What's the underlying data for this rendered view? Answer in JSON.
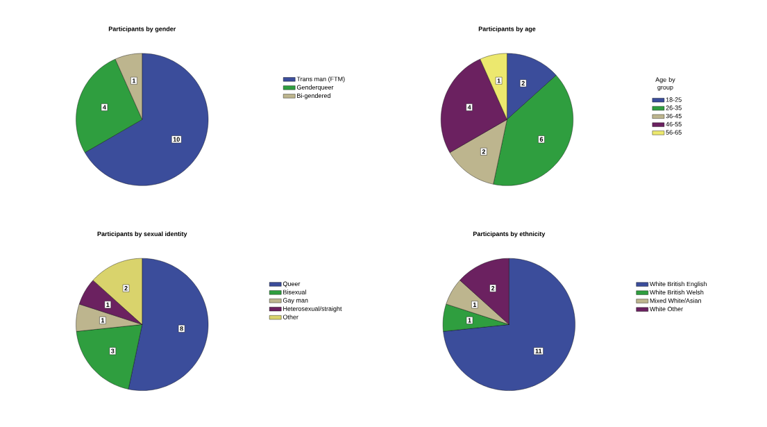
{
  "chart_data": [
    {
      "type": "pie",
      "title": "Participants by gender",
      "categories": [
        "Trans man (FTM)",
        "Genderqueer",
        "Bi-gendered"
      ],
      "values": [
        10,
        4,
        1
      ],
      "colors": [
        "#3b4d9b",
        "#2f9e3f",
        "#bdb58e"
      ],
      "data_labels": true,
      "legend": "right"
    },
    {
      "type": "pie",
      "title": "Participants by age",
      "legend_title": "Age by group",
      "categories": [
        "18-25",
        "26-35",
        "36-45",
        "46-55",
        "56-65"
      ],
      "values": [
        2,
        6,
        2,
        4,
        1
      ],
      "colors": [
        "#3b4d9b",
        "#2f9e3f",
        "#bdb58e",
        "#6b2160",
        "#ece86e"
      ],
      "data_labels": true,
      "legend": "right"
    },
    {
      "type": "pie",
      "title": "Participants by sexual identity",
      "categories": [
        "Queer",
        "Bisexual",
        "Gay man",
        "Heterosexual/straight",
        "Other"
      ],
      "values": [
        8,
        3,
        1,
        1,
        2
      ],
      "colors": [
        "#3b4d9b",
        "#2f9e3f",
        "#bdb58e",
        "#6b2160",
        "#d9d36c"
      ],
      "data_labels": true,
      "legend": "right"
    },
    {
      "type": "pie",
      "title": "Participants by ethnicity",
      "categories": [
        "White British English",
        "White British Welsh",
        "Mixed White/Asian",
        "White Other"
      ],
      "values": [
        11,
        1,
        1,
        2
      ],
      "colors": [
        "#3b4d9b",
        "#2f9e3f",
        "#bdb58e",
        "#6b2160"
      ],
      "data_labels": true,
      "legend": "right"
    }
  ]
}
